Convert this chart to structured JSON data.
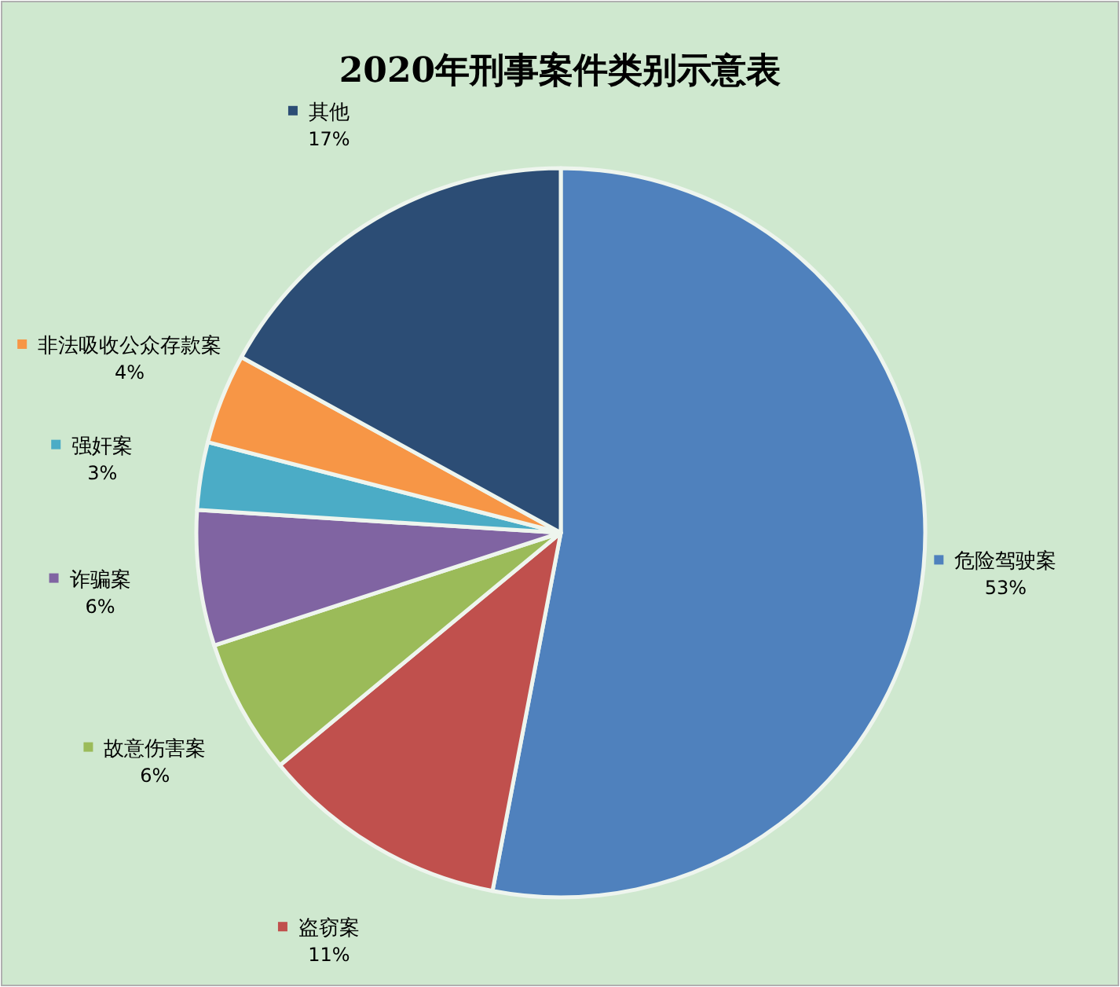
{
  "chart_data": {
    "type": "pie",
    "title": "2020年刑事案件类别示意表",
    "categories": [
      "危险驾驶案",
      "盗窃案",
      "故意伤害案",
      "诈骗案",
      "强奸案",
      "非法吸收公众存款案",
      "其他"
    ],
    "values": [
      53,
      11,
      6,
      6,
      3,
      4,
      17
    ],
    "value_labels": [
      "53%",
      "11%",
      "6%",
      "6%",
      "3%",
      "4%",
      "17%"
    ],
    "colors": [
      "#4f81bd",
      "#c0504d",
      "#9bbb59",
      "#8064a2",
      "#4bacc6",
      "#f79646",
      "#2c4d75"
    ],
    "legend": "top left"
  }
}
